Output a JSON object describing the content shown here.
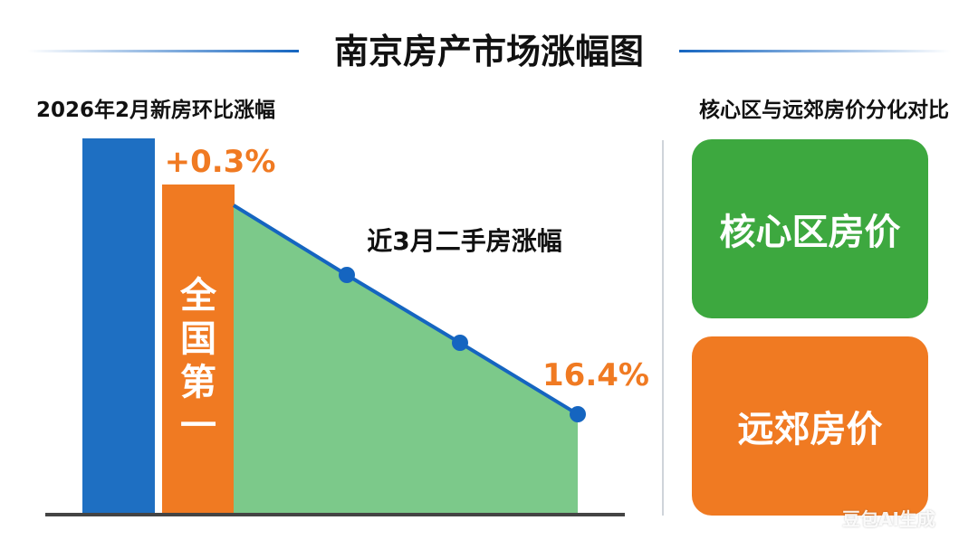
{
  "title": "南京房产市场涨幅图",
  "left_subtitle": "2026年2月新房环比涨幅",
  "right_subtitle": "核心区与远郊房价分化对比",
  "colors": {
    "blue": "#1E6FC2",
    "orange": "#F07A22",
    "green_area": "#7CC98A",
    "line": "#1565C0",
    "card_green": "#3DA83F",
    "card_orange": "#F07A22"
  },
  "chart_data": [
    {
      "type": "bar",
      "title": "2026年2月新房环比涨幅",
      "categories": [
        "",
        "全国第一"
      ],
      "values": [
        null,
        0.3
      ],
      "value_labels": [
        "",
        "+0.3%"
      ],
      "bar_text": [
        "",
        "全国第一"
      ]
    },
    {
      "type": "area",
      "title": "近3月二手房涨幅",
      "x": [
        1,
        2,
        3,
        4
      ],
      "values": [
        0.3,
        null,
        null,
        16.4
      ],
      "value_labels": [
        "",
        "",
        "",
        "16.4%"
      ],
      "markers": [
        false,
        true,
        true,
        true
      ]
    }
  ],
  "cards": [
    {
      "label": "核心区房价",
      "color": "#3DA83F"
    },
    {
      "label": "远郊房价",
      "color": "#F07A22"
    }
  ],
  "watermark": "豆包AI生成"
}
